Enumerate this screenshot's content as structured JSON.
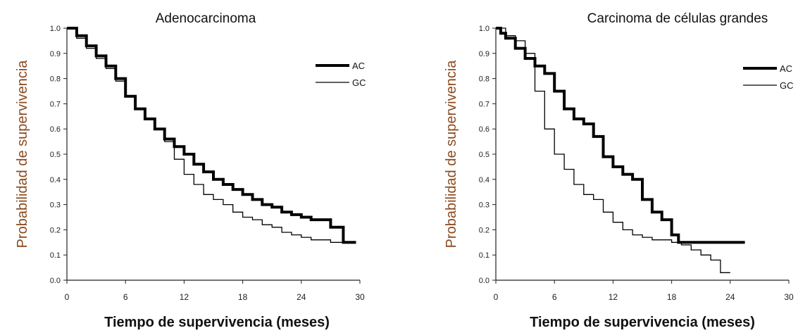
{
  "chart_data": [
    {
      "type": "line",
      "title": "Adenocarcinoma",
      "xlabel": "Tiempo de supervivencia (meses)",
      "ylabel": "Probabilidad de supervivencia",
      "xticks": [
        0,
        6,
        12,
        18,
        24,
        30
      ],
      "yticks": [
        0.0,
        0.1,
        0.2,
        0.3,
        0.4,
        0.5,
        0.6,
        0.7,
        0.8,
        0.9,
        1.0
      ],
      "xlim": [
        0,
        30
      ],
      "ylim": [
        0,
        1
      ],
      "grid": false,
      "legend_position": "top-right",
      "series": [
        {
          "name": "AC",
          "style": "thick",
          "x": [
            0,
            1,
            2,
            3,
            4,
            5,
            6,
            7,
            8,
            9,
            10,
            11,
            12,
            13,
            14,
            15,
            16,
            17,
            18,
            19,
            20,
            21,
            22,
            23,
            24,
            25,
            26,
            26.6,
            27.0,
            28.3,
            28.3,
            29.0,
            29.6
          ],
          "y": [
            1.0,
            0.97,
            0.93,
            0.89,
            0.85,
            0.8,
            0.73,
            0.68,
            0.64,
            0.6,
            0.56,
            0.53,
            0.5,
            0.46,
            0.43,
            0.4,
            0.38,
            0.36,
            0.34,
            0.32,
            0.3,
            0.29,
            0.27,
            0.26,
            0.25,
            0.24,
            0.24,
            0.24,
            0.21,
            0.18,
            0.15,
            0.15,
            0.15
          ]
        },
        {
          "name": "GC",
          "style": "thin",
          "x": [
            0,
            1,
            2,
            3,
            4,
            5,
            6,
            7,
            8,
            9,
            10,
            11,
            12,
            13,
            14,
            15,
            16,
            17,
            18,
            19,
            20,
            21,
            22,
            23,
            24,
            25,
            26,
            27,
            28,
            29
          ],
          "y": [
            1.0,
            0.96,
            0.92,
            0.88,
            0.84,
            0.79,
            0.73,
            0.68,
            0.64,
            0.6,
            0.55,
            0.48,
            0.42,
            0.38,
            0.34,
            0.32,
            0.3,
            0.27,
            0.25,
            0.24,
            0.22,
            0.21,
            0.19,
            0.18,
            0.17,
            0.16,
            0.16,
            0.15,
            0.15,
            0.15
          ]
        }
      ]
    },
    {
      "type": "line",
      "title": "Carcinoma de células grandes",
      "xlabel": "Tiempo de supervivencia (meses)",
      "ylabel": "Probabilidad de supervivencia",
      "xticks": [
        0,
        6,
        12,
        18,
        24,
        30
      ],
      "yticks": [
        0.0,
        0.1,
        0.2,
        0.3,
        0.4,
        0.5,
        0.6,
        0.7,
        0.8,
        0.9,
        1.0
      ],
      "xlim": [
        0,
        30
      ],
      "ylim": [
        0,
        1
      ],
      "grid": false,
      "legend_position": "top-right",
      "series": [
        {
          "name": "AC",
          "style": "thick",
          "x": [
            0,
            0.5,
            1,
            2,
            3,
            4,
            5,
            6,
            7,
            8,
            9,
            10,
            11,
            12,
            13,
            14,
            15,
            16,
            17,
            18,
            18.7,
            20,
            22,
            24,
            25.5
          ],
          "y": [
            1.0,
            0.98,
            0.96,
            0.92,
            0.88,
            0.85,
            0.82,
            0.75,
            0.68,
            0.64,
            0.62,
            0.57,
            0.49,
            0.45,
            0.42,
            0.4,
            0.32,
            0.27,
            0.24,
            0.18,
            0.15,
            0.15,
            0.15,
            0.15,
            0.15
          ]
        },
        {
          "name": "GC",
          "style": "thin",
          "x": [
            0,
            1,
            2,
            3,
            4,
            5,
            6,
            7,
            8,
            9,
            10,
            11,
            12,
            13,
            14,
            15,
            16,
            17,
            18,
            19,
            20,
            21,
            22,
            23,
            24
          ],
          "y": [
            1.0,
            0.97,
            0.95,
            0.9,
            0.75,
            0.6,
            0.5,
            0.44,
            0.38,
            0.34,
            0.32,
            0.27,
            0.23,
            0.2,
            0.18,
            0.17,
            0.16,
            0.16,
            0.15,
            0.14,
            0.12,
            0.1,
            0.08,
            0.03,
            0.03
          ]
        }
      ]
    }
  ]
}
